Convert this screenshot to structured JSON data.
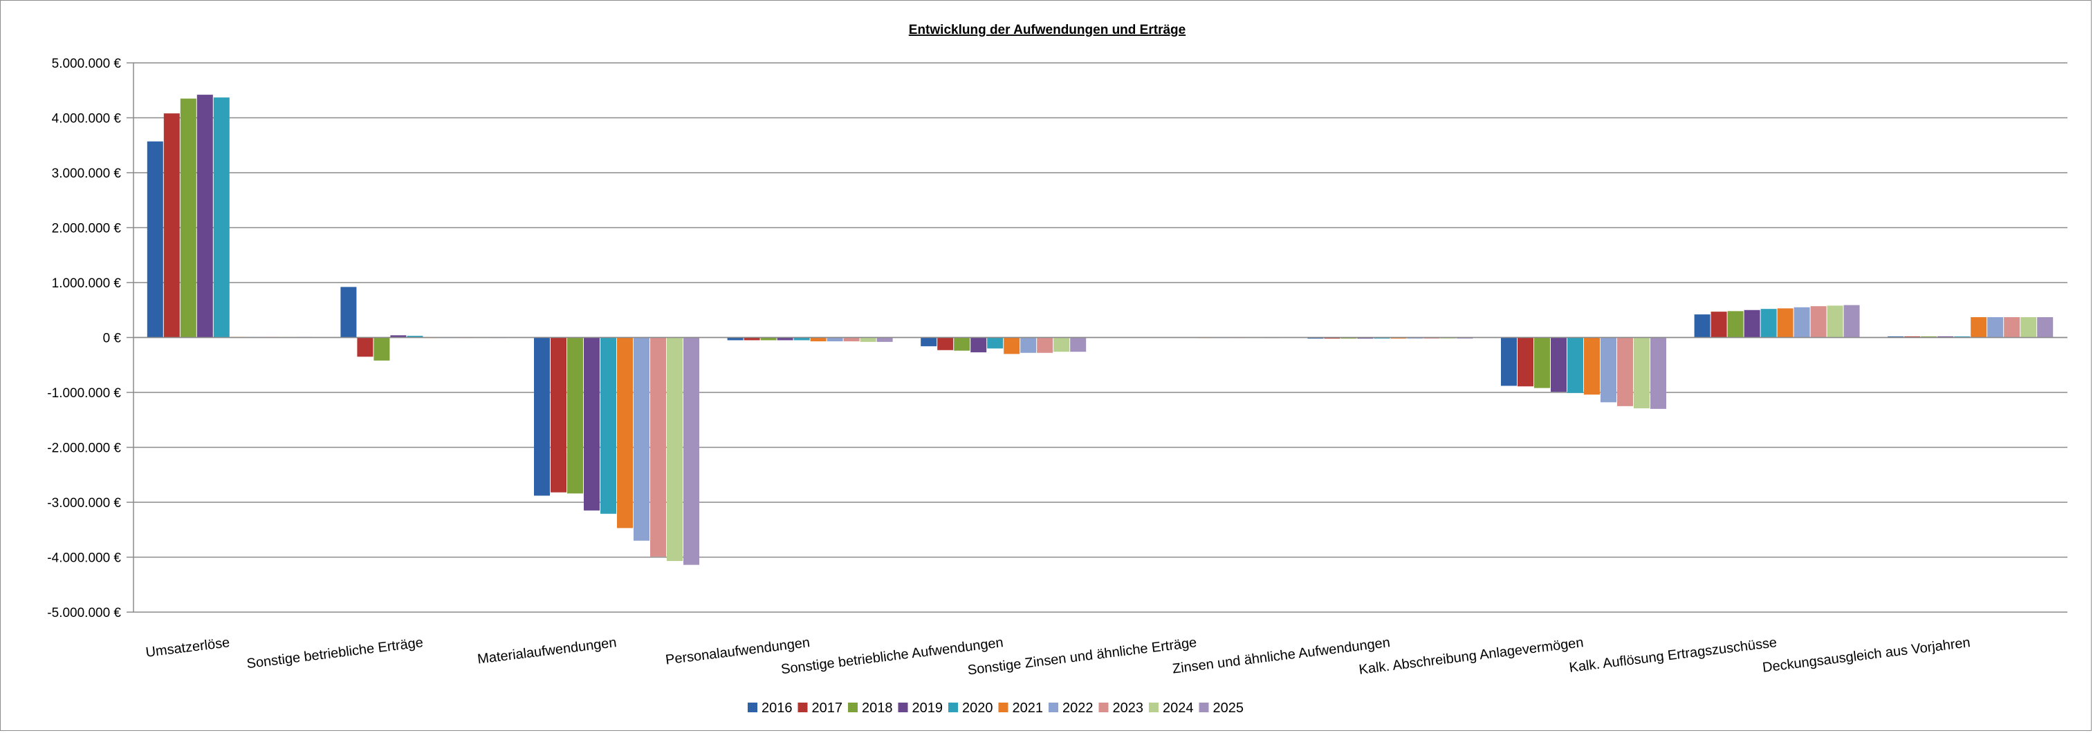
{
  "chart_data": {
    "type": "bar",
    "title": "Entwicklung der Aufwendungen und Erträge",
    "xlabel": "",
    "ylabel": "",
    "ylim": [
      -5000000,
      5000000
    ],
    "y_ticks": [
      5000000,
      4000000,
      3000000,
      2000000,
      1000000,
      0,
      -1000000,
      -2000000,
      -3000000,
      -4000000,
      -5000000
    ],
    "y_tick_labels": [
      "5.000.000 €",
      "4.000.000 €",
      "3.000.000 €",
      "2.000.000 €",
      "1.000.000 €",
      "0 €",
      "-1.000.000 €",
      "-2.000.000 €",
      "-3.000.000 €",
      "-4.000.000 €",
      "-5.000.000 €"
    ],
    "grid": true,
    "legend_position": "bottom",
    "categories": [
      "Umsatzerlöse",
      "Sonstige betriebliche Erträge",
      "Materialaufwendungen",
      "Personalaufwendungen",
      "Sonstige betriebliche Aufwendungen",
      "Sonstige Zinsen und ähnliche Erträge",
      "Zinsen und ähnliche Aufwendungen",
      "Kalk. Abschreibung Anlagevermögen",
      "Kalk. Auflösung Ertragszuschüsse",
      "Deckungsausgleich aus Vorjahren"
    ],
    "series": [
      {
        "name": "2016",
        "color": "#2e62a8",
        "values": [
          3570000,
          920000,
          -2880000,
          -50000,
          -160000,
          5000,
          -20000,
          -880000,
          420000,
          20000
        ]
      },
      {
        "name": "2017",
        "color": "#b33430",
        "values": [
          4080000,
          -350000,
          -2820000,
          -50000,
          -230000,
          5000,
          -20000,
          -890000,
          470000,
          20000
        ]
      },
      {
        "name": "2018",
        "color": "#7ea23a",
        "values": [
          4350000,
          -420000,
          -2840000,
          -50000,
          -240000,
          5000,
          -20000,
          -920000,
          480000,
          20000
        ]
      },
      {
        "name": "2019",
        "color": "#68478f",
        "values": [
          4420000,
          40000,
          -3150000,
          -50000,
          -270000,
          5000,
          -20000,
          -990000,
          500000,
          20000
        ]
      },
      {
        "name": "2020",
        "color": "#2ea0ba",
        "values": [
          4370000,
          30000,
          -3210000,
          -50000,
          -200000,
          5000,
          -20000,
          -1010000,
          520000,
          20000
        ]
      },
      {
        "name": "2021",
        "color": "#e87b26",
        "values": [
          10000,
          0,
          -3470000,
          -70000,
          -300000,
          0,
          -20000,
          -1040000,
          530000,
          370000
        ]
      },
      {
        "name": "2022",
        "color": "#8ca3d2",
        "values": [
          10000,
          0,
          -3700000,
          -70000,
          -280000,
          0,
          -20000,
          -1180000,
          550000,
          370000
        ]
      },
      {
        "name": "2023",
        "color": "#d98f8c",
        "values": [
          10000,
          0,
          -3990000,
          -70000,
          -280000,
          0,
          -20000,
          -1250000,
          570000,
          370000
        ]
      },
      {
        "name": "2024",
        "color": "#b8d08f",
        "values": [
          10000,
          0,
          -4070000,
          -80000,
          -260000,
          0,
          -20000,
          -1290000,
          580000,
          370000
        ]
      },
      {
        "name": "2025",
        "color": "#a291bd",
        "values": [
          10000,
          0,
          -4140000,
          -80000,
          -260000,
          0,
          -20000,
          -1300000,
          590000,
          370000
        ]
      }
    ]
  }
}
